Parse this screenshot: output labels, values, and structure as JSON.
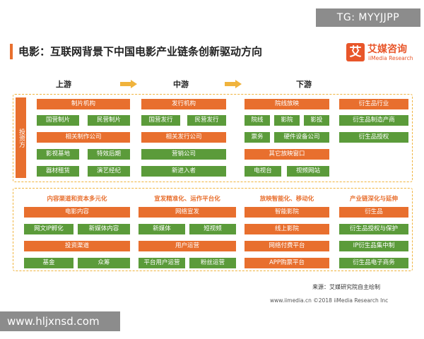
{
  "watermark_top": "TG: MYYJJPP",
  "watermark_bottom": "www.hljxnsd.com",
  "title": "电影：互联网背景下中国电影产业链条创新驱动方向",
  "logo": {
    "mark": "艾",
    "cn": "艾媒咨询",
    "en": "iiMedia Research"
  },
  "stages": {
    "upstream": "上游",
    "midstream": "中游",
    "downstream": "下游"
  },
  "investor_label": "投资方",
  "upper": {
    "col1": {
      "header": "制片机构",
      "row1": [
        "国营制片",
        "民营制片"
      ],
      "sub": "相关制作公司",
      "row2": [
        "影视基地",
        "特效后期"
      ],
      "row3": [
        "器材租赁",
        "演艺经纪"
      ]
    },
    "col2": {
      "header": "发行机构",
      "row1": [
        "国营发行",
        "民营发行"
      ],
      "sub": "相关发行公司",
      "g1": "营销公司",
      "g2": "新进入者"
    },
    "col3": {
      "header": "院线放映",
      "row1": [
        "院线",
        "影院",
        "影投"
      ],
      "row2": [
        "票务",
        "硬件设备公司"
      ],
      "sub": "其它放映窗口",
      "row3": [
        "电视台",
        "视频网站"
      ]
    },
    "col4": {
      "header": "衍生品行业",
      "g1": "衍生品制造产商",
      "g2": "衍生品授权"
    }
  },
  "lower": {
    "col1": {
      "title": "内容渠道和资本多元化",
      "h1": "电影内容",
      "row1": [
        "网文IP孵化",
        "新媒体内容"
      ],
      "h2": "投资渠道",
      "row2": [
        "基金",
        "众筹"
      ]
    },
    "col2": {
      "title": "宣发精准化、运作平台化",
      "h1": "网络宣发",
      "row1": [
        "新媒体",
        "短视频"
      ],
      "h2": "用户运营",
      "row2": [
        "平台用户运营",
        "粉丝运营"
      ]
    },
    "col3": {
      "title": "放映智能化、移动化",
      "h1": "智能影院",
      "h2": "线上影院",
      "h3": "网络付费平台",
      "h4": "APP购票平台"
    },
    "col4": {
      "title": "产业链深化与延伸",
      "h1": "衍生品",
      "g1": "衍生品授权与保护",
      "g2": "IP衍生品集中制",
      "g3": "衍生品电子商务"
    }
  },
  "source": "来源：艾媒研究院自主绘制",
  "footer": "www.iimedia.cn  ©2018 iiMedia Research Inc",
  "colors": {
    "orange": "#e86f2e",
    "green": "#5b9b3a",
    "dashed": "#f0b33c"
  }
}
